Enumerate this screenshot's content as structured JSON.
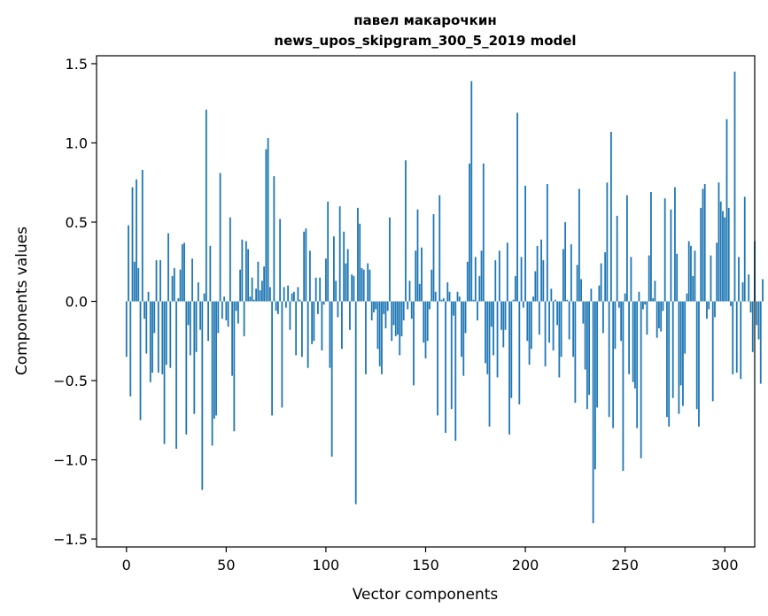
{
  "chart_data": {
    "type": "bar",
    "title": "павел макарочкин",
    "subtitle": "news_upos_skipgram_300_5_2019 model",
    "xlabel": "Vector components",
    "ylabel": "Components values",
    "xlim": [
      -15,
      315
    ],
    "ylim": [
      -1.55,
      1.55
    ],
    "x_ticks": [
      0,
      50,
      100,
      150,
      200,
      250,
      300
    ],
    "y_ticks": [
      -1.5,
      -1.0,
      -0.5,
      0.0,
      0.5,
      1.0,
      1.5
    ],
    "x_tick_labels": [
      "0",
      "50",
      "100",
      "150",
      "200",
      "250",
      "300"
    ],
    "y_tick_labels": [
      "−1.5",
      "−1.0",
      "−0.5",
      "0.0",
      "0.5",
      "1.0",
      "1.5"
    ],
    "bar_color": "#1f77b4",
    "grid": false,
    "values": [
      -0.35,
      0.48,
      -0.6,
      0.72,
      0.25,
      0.77,
      0.21,
      -0.75,
      0.83,
      -0.11,
      -0.33,
      0.06,
      -0.51,
      -0.45,
      -0.2,
      0.26,
      -0.45,
      0.26,
      -0.46,
      -0.9,
      -0.4,
      0.43,
      -0.42,
      0.16,
      0.21,
      -0.93,
      0.02,
      0.2,
      0.36,
      0.37,
      -0.84,
      -0.15,
      -0.34,
      0.27,
      -0.71,
      -0.32,
      0.12,
      -0.18,
      -1.19,
      0.05,
      1.21,
      -0.25,
      0.35,
      -0.91,
      -0.74,
      -0.72,
      -0.2,
      0.81,
      -0.11,
      0.03,
      -0.12,
      -0.16,
      0.53,
      -0.47,
      -0.82,
      -0.06,
      -0.14,
      0.2,
      0.39,
      -0.22,
      0.38,
      0.33,
      0.03,
      0.15,
      0.01,
      0.08,
      0.25,
      0.07,
      0.13,
      0.22,
      0.96,
      1.03,
      0.09,
      -0.72,
      0.79,
      -0.06,
      -0.08,
      0.52,
      -0.67,
      0.09,
      -0.04,
      0.1,
      -0.18,
      0.05,
      0.06,
      -0.34,
      0.09,
      0.01,
      -0.35,
      0.44,
      0.46,
      -0.42,
      0.32,
      -0.27,
      -0.25,
      0.15,
      -0.08,
      0.15,
      -0.31,
      -0.02,
      0.27,
      0.63,
      -0.42,
      -0.98,
      0.41,
      0.13,
      -0.1,
      0.6,
      -0.3,
      0.44,
      0.24,
      0.33,
      -0.18,
      0.17,
      0.16,
      -1.28,
      0.59,
      0.49,
      0.21,
      0.2,
      -0.46,
      0.24,
      0.2,
      -0.12,
      -0.07,
      -0.05,
      -0.3,
      -0.41,
      -0.46,
      -0.08,
      -0.17,
      -0.06,
      0.53,
      -0.25,
      -0.15,
      -0.22,
      -0.21,
      -0.34,
      -0.22,
      -0.12,
      0.89,
      -0.05,
      0.13,
      -0.11,
      -0.53,
      0.32,
      0.58,
      0.11,
      0.34,
      -0.26,
      -0.36,
      -0.25,
      -0.05,
      0.2,
      0.55,
      0.06,
      -0.72,
      0.67,
      0.01,
      0.02,
      -0.83,
      0.12,
      0.06,
      -0.68,
      -0.09,
      -0.88,
      0.06,
      0.03,
      -0.35,
      -0.47,
      -0.2,
      0.25,
      0.87,
      1.39,
      0.01,
      0.28,
      -0.12,
      0.16,
      0.32,
      0.87,
      -0.39,
      -0.46,
      -0.79,
      -0.16,
      -0.34,
      0.26,
      -0.48,
      0.32,
      -0.18,
      -0.29,
      -0.18,
      0.37,
      -0.84,
      -0.61,
      0.01,
      0.16,
      1.19,
      -0.65,
      0.28,
      -0.04,
      0.73,
      -0.25,
      -0.4,
      -0.3,
      0.03,
      0.19,
      0.35,
      -0.21,
      0.39,
      0.26,
      -0.41,
      0.74,
      -0.26,
      0.08,
      -0.31,
      0.01,
      -0.15,
      -0.48,
      -0.35,
      0.33,
      0.5,
      0.01,
      -0.24,
      0.36,
      -0.35,
      -0.64,
      0.23,
      0.71,
      0.14,
      -0.14,
      -0.43,
      -0.68,
      -0.59,
      0.08,
      -1.4,
      -1.06,
      -0.67,
      0.1,
      0.24,
      -0.2,
      0.31,
      0.75,
      -0.73,
      1.07,
      -0.8,
      -0.3,
      0.54,
      -0.04,
      -0.25,
      -1.07,
      0.05,
      0.67,
      -0.46,
      0.28,
      -0.51,
      -0.55,
      -0.8,
      0.06,
      -0.99,
      -0.05,
      -0.02,
      -0.21,
      0.29,
      0.69,
      0.02,
      0.13,
      -0.23,
      -0.17,
      -0.19,
      -0.06,
      0.65,
      -0.73,
      -0.79,
      0.58,
      -0.61,
      0.72,
      0.3,
      -0.71,
      -0.53,
      -0.66,
      -0.33,
      0.05,
      0.38,
      0.35,
      0.16,
      0.32,
      -0.68,
      -0.79,
      0.59,
      0.71,
      0.74,
      -0.11,
      -0.05,
      0.29,
      -0.63,
      -0.1,
      0.37,
      0.75,
      0.63,
      0.57,
      0.53,
      1.15,
      0.59,
      -0.03,
      -0.46,
      1.45,
      -0.45,
      0.28,
      -0.49,
      0.12,
      0.66,
      0.0,
      0.17,
      -0.07,
      -0.32,
      0.38,
      -0.15,
      -0.24,
      -0.52,
      0.14
    ]
  }
}
